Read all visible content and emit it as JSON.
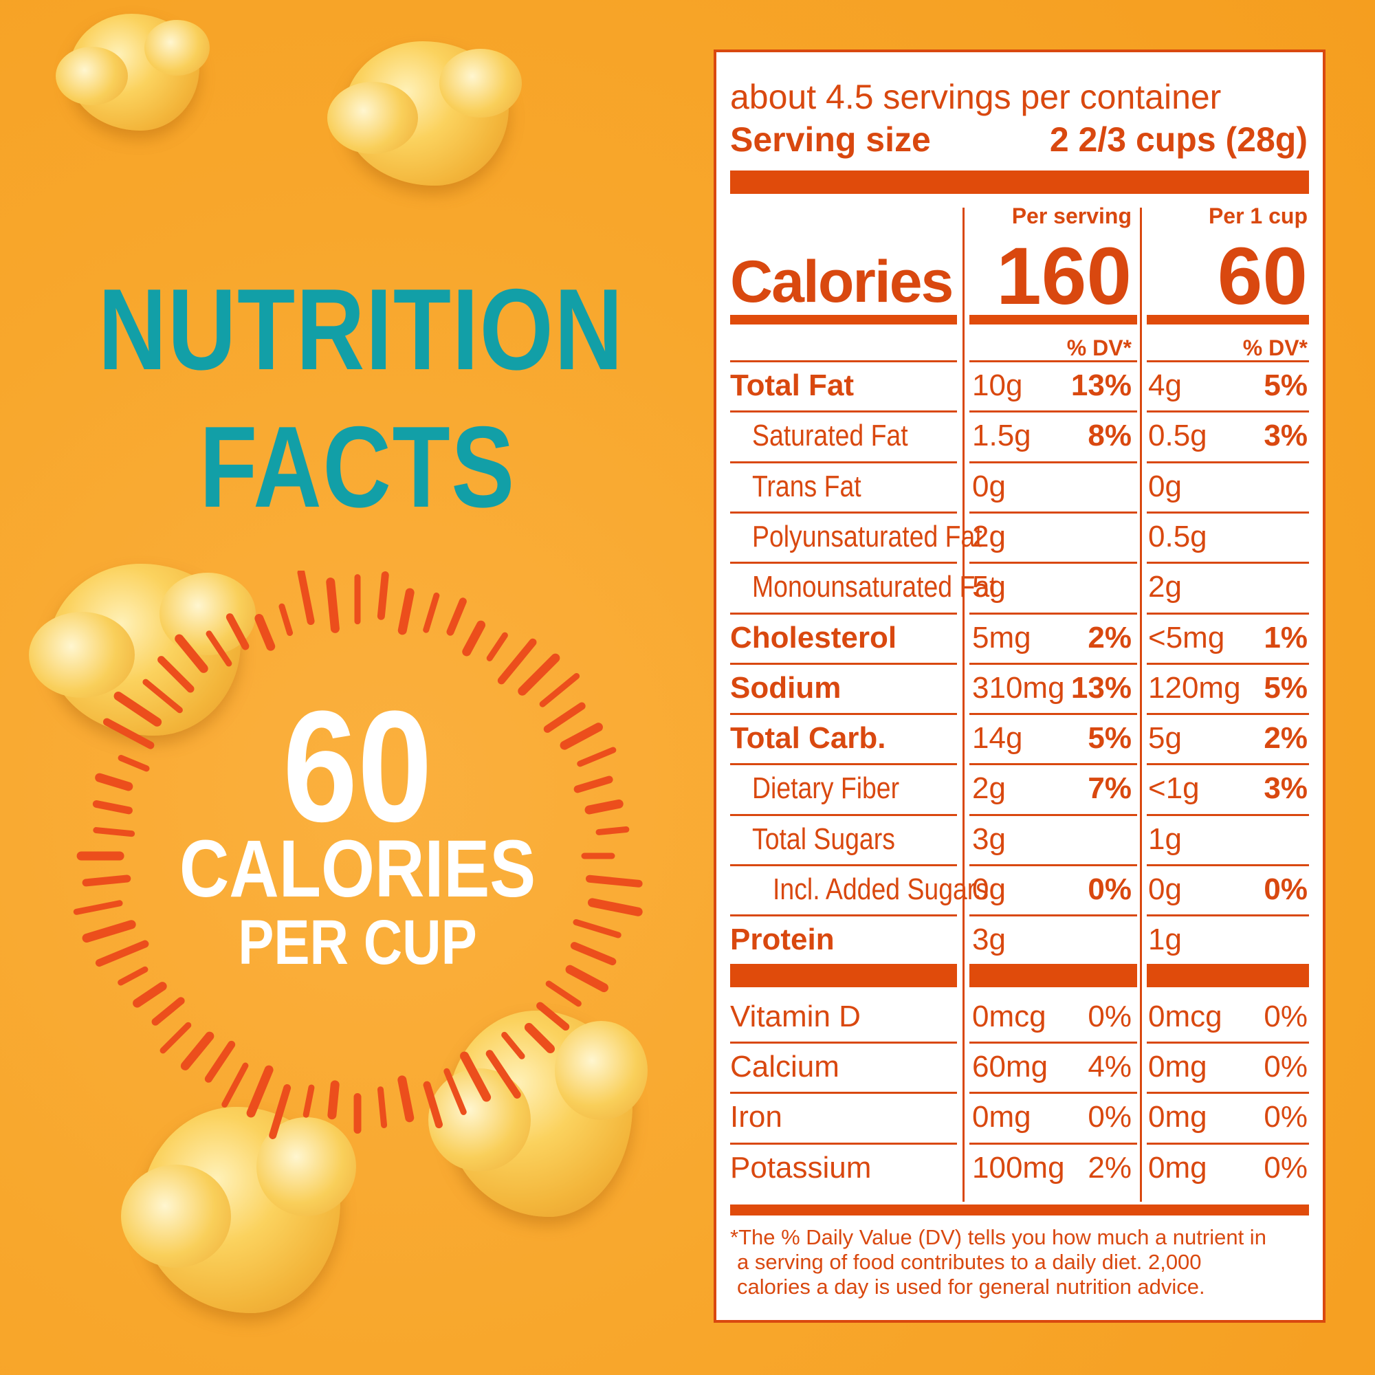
{
  "colors": {
    "background": "#f8a72c",
    "title_teal": "#129fa7",
    "label_orange": "#d9480f",
    "white": "#ffffff"
  },
  "hero": {
    "title_line1": "NUTRITION",
    "title_line2": "FACTS",
    "calories_number": "60",
    "calories_label": "CALORIES",
    "calories_unit": "PER CUP"
  },
  "label": {
    "servings_per_container": "about 4.5 servings per container",
    "serving_size_label": "Serving size",
    "serving_size_value": "2 2/3 cups (28g)",
    "per_serving_header": "Per serving",
    "per_cup_header": "Per 1 cup",
    "calories_label": "Calories",
    "calories_per_serving": "160",
    "calories_per_cup": "60",
    "dv_header": "% DV*",
    "nutrients": [
      {
        "name": "Total Fat",
        "bold": true,
        "indent": 0,
        "s_amt": "10g",
        "s_dv": "13%",
        "c_amt": "4g",
        "c_dv": "5%"
      },
      {
        "name": "Saturated Fat",
        "bold": false,
        "indent": 1,
        "s_amt": "1.5g",
        "s_dv": "8%",
        "c_amt": "0.5g",
        "c_dv": "3%"
      },
      {
        "name": "Trans Fat",
        "bold": false,
        "indent": 1,
        "s_amt": "0g",
        "s_dv": "",
        "c_amt": "0g",
        "c_dv": ""
      },
      {
        "name": "Polyunsaturated Fat",
        "bold": false,
        "indent": 1,
        "s_amt": "2g",
        "s_dv": "",
        "c_amt": "0.5g",
        "c_dv": ""
      },
      {
        "name": "Monounsaturated Fat",
        "bold": false,
        "indent": 1,
        "s_amt": "5g",
        "s_dv": "",
        "c_amt": "2g",
        "c_dv": ""
      },
      {
        "name": "Cholesterol",
        "bold": true,
        "indent": 0,
        "s_amt": "5mg",
        "s_dv": "2%",
        "c_amt": "<5mg",
        "c_dv": "1%"
      },
      {
        "name": "Sodium",
        "bold": true,
        "indent": 0,
        "s_amt": "310mg",
        "s_dv": "13%",
        "c_amt": "120mg",
        "c_dv": "5%"
      },
      {
        "name": "Total Carb.",
        "bold": true,
        "indent": 0,
        "s_amt": "14g",
        "s_dv": "5%",
        "c_amt": "5g",
        "c_dv": "2%"
      },
      {
        "name": "Dietary Fiber",
        "bold": false,
        "indent": 1,
        "s_amt": "2g",
        "s_dv": "7%",
        "c_amt": "<1g",
        "c_dv": "3%"
      },
      {
        "name": "Total Sugars",
        "bold": false,
        "indent": 1,
        "s_amt": "3g",
        "s_dv": "",
        "c_amt": "1g",
        "c_dv": ""
      },
      {
        "name": "Incl. Added Sugars",
        "bold": false,
        "indent": 2,
        "s_amt": "0g",
        "s_dv": "0%",
        "c_amt": "0g",
        "c_dv": "0%"
      },
      {
        "name": "Protein",
        "bold": true,
        "indent": 0,
        "s_amt": "3g",
        "s_dv": "",
        "c_amt": "1g",
        "c_dv": ""
      }
    ],
    "vitamins": [
      {
        "name": "Vitamin D",
        "s_amt": "0mcg",
        "s_dv": "0%",
        "c_amt": "0mcg",
        "c_dv": "0%"
      },
      {
        "name": "Calcium",
        "s_amt": "60mg",
        "s_dv": "4%",
        "c_amt": "0mg",
        "c_dv": "0%"
      },
      {
        "name": "Iron",
        "s_amt": "0mg",
        "s_dv": "0%",
        "c_amt": "0mg",
        "c_dv": "0%"
      },
      {
        "name": "Potassium",
        "s_amt": "100mg",
        "s_dv": "2%",
        "c_amt": "0mg",
        "c_dv": "0%"
      }
    ],
    "footnote_line1": "*The % Daily Value (DV) tells you how much a nutrient in",
    "footnote_line2": "a serving of food contributes to a daily diet. 2,000",
    "footnote_line3": "calories a day is used for general nutrition advice."
  }
}
